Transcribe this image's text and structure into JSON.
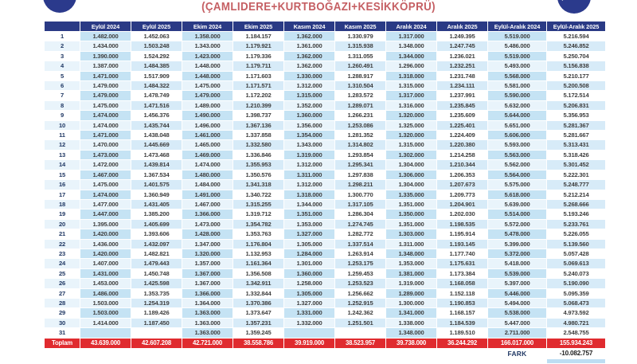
{
  "title": "(ÇAMLIDERE+KURTBOĞAZI+KESİKKÖPRÜ)",
  "colors": {
    "header_navy": "#2a3a85",
    "day_navy": "#203864",
    "title_red": "#c55f63",
    "total_red": "#e02b2f",
    "band_strong": "#c5e3f4",
    "band_mid": "#d7ebf8",
    "band_pale": "#e9f4fb",
    "stub_blue": "#bdddf2",
    "logo_navy": "#2b3a8c"
  },
  "icons": {
    "logo": "water-authority-logo"
  },
  "table": {
    "columns": [
      "",
      "Eylül 2024",
      "Eylül 2025",
      "Ekim 2024",
      "Ekim 2025",
      "Kasım 2024",
      "Kasım 2025",
      "Aralık 2024",
      "Aralık 2025",
      "Eylül-Aralık 2024",
      "Eylül-Aralık 2025"
    ],
    "rows": [
      {
        "day": "1",
        "values": [
          "1.482.000",
          "1.452.063",
          "1.358.000",
          "1.184.157",
          "1.362.000",
          "1.330.979",
          "1.317.000",
          "1.249.395",
          "5.519.000",
          "5.216.594"
        ]
      },
      {
        "day": "2",
        "values": [
          "1.434.000",
          "1.503.248",
          "1.343.000",
          "1.179.921",
          "1.361.000",
          "1.315.938",
          "1.348.000",
          "1.247.745",
          "5.486.000",
          "5.246.852"
        ]
      },
      {
        "day": "3",
        "values": [
          "1.390.000",
          "1.524.292",
          "1.423.000",
          "1.179.336",
          "1.362.000",
          "1.311.055",
          "1.344.000",
          "1.236.021",
          "5.519.000",
          "5.250.704"
        ]
      },
      {
        "day": "4",
        "values": [
          "1.387.000",
          "1.484.385",
          "1.448.000",
          "1.179.711",
          "1.362.000",
          "1.260.491",
          "1.296.000",
          "1.232.251",
          "5.493.000",
          "5.156.838"
        ]
      },
      {
        "day": "5",
        "values": [
          "1.471.000",
          "1.517.909",
          "1.448.000",
          "1.171.603",
          "1.330.000",
          "1.288.917",
          "1.318.000",
          "1.231.748",
          "5.568.000",
          "5.210.177"
        ]
      },
      {
        "day": "6",
        "values": [
          "1.479.000",
          "1.484.322",
          "1.475.000",
          "1.171.571",
          "1.312.000",
          "1.310.504",
          "1.315.000",
          "1.234.111",
          "5.581.000",
          "5.200.508"
        ]
      },
      {
        "day": "7",
        "values": [
          "1.479.000",
          "1.478.749",
          "1.479.000",
          "1.172.202",
          "1.315.000",
          "1.283.572",
          "1.317.000",
          "1.237.991",
          "5.590.000",
          "5.172.514"
        ]
      },
      {
        "day": "8",
        "values": [
          "1.475.000",
          "1.471.516",
          "1.489.000",
          "1.210.399",
          "1.352.000",
          "1.289.071",
          "1.316.000",
          "1.235.845",
          "5.632.000",
          "5.206.831"
        ]
      },
      {
        "day": "9",
        "values": [
          "1.474.000",
          "1.456.376",
          "1.490.000",
          "1.398.737",
          "1.360.000",
          "1.266.231",
          "1.320.000",
          "1.235.609",
          "5.644.000",
          "5.356.953"
        ]
      },
      {
        "day": "10",
        "values": [
          "1.474.000",
          "1.435.744",
          "1.496.000",
          "1.367.136",
          "1.356.000",
          "1.253.086",
          "1.325.000",
          "1.225.401",
          "5.651.000",
          "5.281.367"
        ]
      },
      {
        "day": "11",
        "values": [
          "1.471.000",
          "1.438.048",
          "1.461.000",
          "1.337.858",
          "1.354.000",
          "1.281.352",
          "1.320.000",
          "1.224.409",
          "5.606.000",
          "5.281.667"
        ]
      },
      {
        "day": "12",
        "values": [
          "1.470.000",
          "1.445.669",
          "1.465.000",
          "1.332.580",
          "1.343.000",
          "1.314.802",
          "1.315.000",
          "1.220.380",
          "5.593.000",
          "5.313.431"
        ]
      },
      {
        "day": "13",
        "values": [
          "1.473.000",
          "1.473.468",
          "1.469.000",
          "1.336.846",
          "1.319.000",
          "1.293.854",
          "1.302.000",
          "1.214.258",
          "5.563.000",
          "5.318.426"
        ]
      },
      {
        "day": "14",
        "values": [
          "1.472.000",
          "1.439.814",
          "1.474.000",
          "1.355.953",
          "1.312.000",
          "1.295.341",
          "1.304.000",
          "1.210.344",
          "5.562.000",
          "5.301.452"
        ]
      },
      {
        "day": "15",
        "values": [
          "1.467.000",
          "1.367.534",
          "1.480.000",
          "1.350.576",
          "1.311.000",
          "1.297.838",
          "1.306.000",
          "1.206.353",
          "5.564.000",
          "5.222.301"
        ]
      },
      {
        "day": "16",
        "values": [
          "1.475.000",
          "1.401.575",
          "1.484.000",
          "1.341.318",
          "1.312.000",
          "1.298.211",
          "1.304.000",
          "1.207.673",
          "5.575.000",
          "5.248.777"
        ]
      },
      {
        "day": "17",
        "values": [
          "1.474.000",
          "1.360.949",
          "1.491.000",
          "1.340.722",
          "1.318.000",
          "1.300.770",
          "1.335.000",
          "1.209.773",
          "5.618.000",
          "5.212.214"
        ]
      },
      {
        "day": "18",
        "values": [
          "1.477.000",
          "1.431.405",
          "1.467.000",
          "1.315.255",
          "1.344.000",
          "1.317.105",
          "1.351.000",
          "1.204.901",
          "5.639.000",
          "5.268.666"
        ]
      },
      {
        "day": "19",
        "values": [
          "1.447.000",
          "1.385.200",
          "1.366.000",
          "1.319.712",
          "1.351.000",
          "1.286.304",
          "1.350.000",
          "1.202.030",
          "5.514.000",
          "5.193.246"
        ]
      },
      {
        "day": "20",
        "values": [
          "1.395.000",
          "1.405.699",
          "1.473.000",
          "1.354.782",
          "1.353.000",
          "1.274.745",
          "1.351.000",
          "1.198.535",
          "5.572.000",
          "5.233.761"
        ]
      },
      {
        "day": "21",
        "values": [
          "1.420.000",
          "1.393.606",
          "1.428.000",
          "1.353.763",
          "1.327.000",
          "1.282.772",
          "1.303.000",
          "1.195.914",
          "5.478.000",
          "5.226.055"
        ]
      },
      {
        "day": "22",
        "values": [
          "1.436.000",
          "1.432.097",
          "1.347.000",
          "1.176.804",
          "1.305.000",
          "1.337.514",
          "1.311.000",
          "1.193.145",
          "5.399.000",
          "5.139.560"
        ]
      },
      {
        "day": "23",
        "values": [
          "1.420.000",
          "1.482.821",
          "1.320.000",
          "1.132.953",
          "1.284.000",
          "1.263.914",
          "1.348.000",
          "1.177.740",
          "5.372.000",
          "5.057.428"
        ]
      },
      {
        "day": "24",
        "values": [
          "1.407.000",
          "1.479.443",
          "1.357.000",
          "1.161.364",
          "1.301.000",
          "1.253.175",
          "1.353.000",
          "1.175.631",
          "5.418.000",
          "5.069.613"
        ]
      },
      {
        "day": "25",
        "values": [
          "1.431.000",
          "1.450.748",
          "1.367.000",
          "1.356.508",
          "1.360.000",
          "1.259.453",
          "1.381.000",
          "1.173.384",
          "5.539.000",
          "5.240.073"
        ]
      },
      {
        "day": "26",
        "values": [
          "1.453.000",
          "1.425.598",
          "1.367.000",
          "1.342.911",
          "1.258.000",
          "1.253.523",
          "1.319.000",
          "1.168.058",
          "5.397.000",
          "5.190.090"
        ]
      },
      {
        "day": "27",
        "values": [
          "1.486.000",
          "1.353.735",
          "1.366.000",
          "1.332.844",
          "1.305.000",
          "1.256.662",
          "1.289.000",
          "1.152.118",
          "5.446.000",
          "5.095.359"
        ]
      },
      {
        "day": "28",
        "values": [
          "1.503.000",
          "1.254.319",
          "1.364.000",
          "1.370.386",
          "1.327.000",
          "1.252.915",
          "1.300.000",
          "1.190.853",
          "5.494.000",
          "5.068.473"
        ]
      },
      {
        "day": "29",
        "values": [
          "1.503.000",
          "1.189.426",
          "1.363.000",
          "1.373.647",
          "1.331.000",
          "1.242.362",
          "1.341.000",
          "1.168.157",
          "5.538.000",
          "4.973.592"
        ]
      },
      {
        "day": "30",
        "values": [
          "1.414.000",
          "1.187.450",
          "1.363.000",
          "1.357.231",
          "1.332.000",
          "1.251.501",
          "1.338.000",
          "1.184.539",
          "5.447.000",
          "4.980.721"
        ]
      },
      {
        "day": "31",
        "values": [
          "",
          "",
          "1.363.000",
          "1.359.245",
          "",
          "",
          "1.348.000",
          "1.189.510",
          "2.711.000",
          "2.548.755"
        ]
      }
    ],
    "total_label": "Toplam",
    "totals": [
      "43.639.000",
      "42.607.208",
      "42.721.000",
      "38.558.786",
      "39.919.000",
      "38.523.957",
      "39.738.000",
      "36.244.292",
      "166.017.000",
      "155.934.243"
    ],
    "fark_label": "FARK",
    "fark_value": "-10.082.757"
  }
}
